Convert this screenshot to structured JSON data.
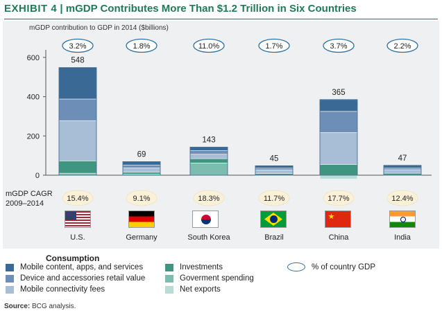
{
  "header": {
    "exhibit": "EXHIBIT 4",
    "separator": "|",
    "title": "mGDP Contributes More Than $1.2 Trillion in Six Countries"
  },
  "colors": {
    "mobile_content": "#3b6996",
    "device": "#6d8fb7",
    "connectivity": "#a8bdd6",
    "investments": "#3f9580",
    "government": "#7dbdb0",
    "net_exports": "#b9ddd6",
    "accent": "#1f7a57",
    "cagr_fill": "#fbf1d8"
  },
  "chart_data": {
    "type": "bar",
    "stacked": true,
    "ylabel": "mGDP contribution to GDP in 2014 ($billions)",
    "ylim": [
      -20,
      650
    ],
    "yticks": [
      0,
      200,
      400,
      600
    ],
    "categories": [
      "U.S.",
      "Germany",
      "South Korea",
      "Brazil",
      "China",
      "India"
    ],
    "totals": [
      548,
      69,
      143,
      45,
      365,
      47
    ],
    "share_of_gdp": [
      "3.2%",
      "1.8%",
      "11.0%",
      "1.7%",
      "3.7%",
      "2.2%"
    ],
    "cagr_label_line1": "mGDP CAGR",
    "cagr_label_line2": "2009–2014",
    "cagr": [
      "15.4%",
      "9.1%",
      "18.3%",
      "11.7%",
      "17.7%",
      "12.4%"
    ],
    "series": [
      {
        "name": "Mobile content, apps, and services",
        "color_key": "mobile_content",
        "values": [
          160,
          17,
          18,
          12,
          60,
          14
        ]
      },
      {
        "name": "Device and accessories retail value",
        "color_key": "device",
        "values": [
          110,
          15,
          18,
          9,
          108,
          8
        ]
      },
      {
        "name": "Mobile connectivity fees",
        "color_key": "connectivity",
        "values": [
          205,
          22,
          23,
          18,
          162,
          18
        ]
      },
      {
        "name": "Investments",
        "color_key": "investments",
        "values": [
          63,
          10,
          22,
          9,
          55,
          10
        ]
      },
      {
        "name": "Goverment spending",
        "color_key": "government",
        "values": [
          10,
          5,
          62,
          0,
          0,
          0
        ]
      },
      {
        "name": "Net exports",
        "color_key": "net_exports",
        "values": [
          0,
          0,
          0,
          -3,
          -20,
          -3
        ]
      }
    ]
  },
  "legend": {
    "title": "Consumption",
    "items": [
      "Mobile content, apps, and services",
      "Device and accessories retail value",
      "Mobile connectivity fees",
      "Investments",
      "Goverment spending",
      "Net exports"
    ],
    "ellipse_label": "% of country GDP"
  },
  "source": {
    "label": "Source:",
    "text": "BCG analysis."
  }
}
